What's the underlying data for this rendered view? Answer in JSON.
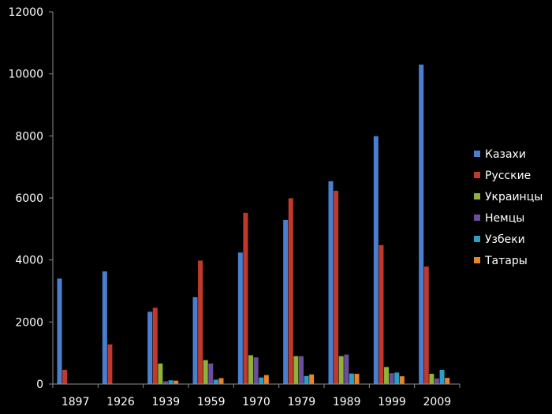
{
  "chart_data": {
    "type": "bar",
    "title": "",
    "xlabel": "",
    "ylabel": "",
    "ylim": [
      0,
      12000
    ],
    "yticks": [
      0,
      2000,
      4000,
      6000,
      8000,
      10000,
      12000
    ],
    "grid": false,
    "legend_position": "right",
    "background": "#000000",
    "categories": [
      "1897",
      "1926",
      "1939",
      "1959",
      "1970",
      "1979",
      "1989",
      "1999",
      "2009"
    ],
    "series": [
      {
        "name": "Казахи",
        "color": "#4a7fd0",
        "values": [
          3400,
          3630,
          2330,
          2800,
          4240,
          5290,
          6540,
          7990,
          10300
        ]
      },
      {
        "name": "Русские",
        "color": "#c0392b",
        "values": [
          460,
          1280,
          2460,
          3980,
          5520,
          5990,
          6230,
          4480,
          3790
        ]
      },
      {
        "name": "Украинцы",
        "color": "#8eb23a",
        "values": [
          0,
          0,
          660,
          770,
          930,
          900,
          900,
          550,
          330
        ]
      },
      {
        "name": "Немцы",
        "color": "#6a4d9c",
        "values": [
          0,
          0,
          90,
          660,
          860,
          900,
          950,
          350,
          180
        ]
      },
      {
        "name": "Узбеки",
        "color": "#2e9fc4",
        "values": [
          0,
          0,
          120,
          140,
          210,
          260,
          340,
          370,
          460
        ]
      },
      {
        "name": "Татары",
        "color": "#e8842c",
        "values": [
          0,
          0,
          110,
          190,
          290,
          310,
          330,
          250,
          200
        ]
      }
    ]
  }
}
